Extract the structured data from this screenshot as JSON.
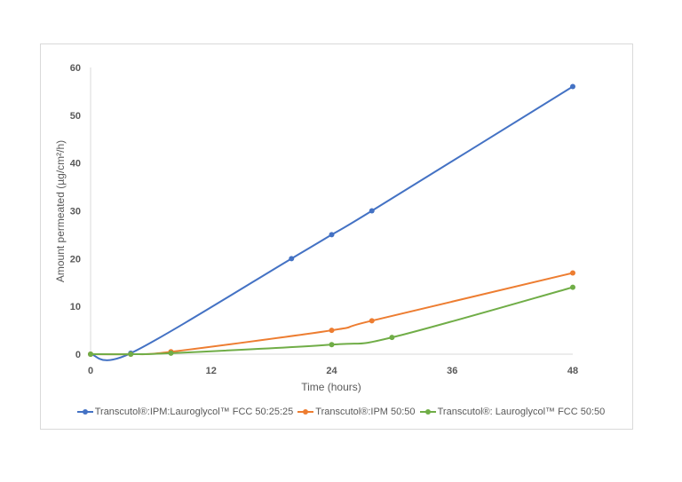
{
  "chart_data": {
    "type": "line",
    "title": "",
    "xlabel": "Time (hours)",
    "ylabel": "Amount permeated (µg/cm²/h)",
    "xlim": [
      0,
      48
    ],
    "ylim": [
      0,
      60
    ],
    "xticks": [
      0,
      12,
      24,
      36,
      48
    ],
    "yticks": [
      0,
      10,
      20,
      30,
      40,
      50,
      60
    ],
    "grid": false,
    "legend_position": "bottom",
    "series": [
      {
        "name": "Transcutol®:IPM:Lauroglycol™ FCC 50:25:25",
        "color": "#4472c4",
        "x": [
          0,
          4,
          20,
          24,
          28,
          48
        ],
        "y": [
          0,
          0.2,
          20,
          25,
          30,
          56
        ]
      },
      {
        "name": "Transcutol®:IPM 50:50",
        "color": "#ed7d31",
        "x": [
          0,
          4,
          8,
          24,
          28,
          48
        ],
        "y": [
          0,
          0,
          0.5,
          5,
          7,
          17
        ]
      },
      {
        "name": "Transcutol®: Lauroglycol™ FCC 50:50",
        "color": "#70ad47",
        "x": [
          0,
          4,
          8,
          24,
          30,
          48
        ],
        "y": [
          0,
          0,
          0.2,
          2,
          3.5,
          14
        ]
      }
    ]
  }
}
